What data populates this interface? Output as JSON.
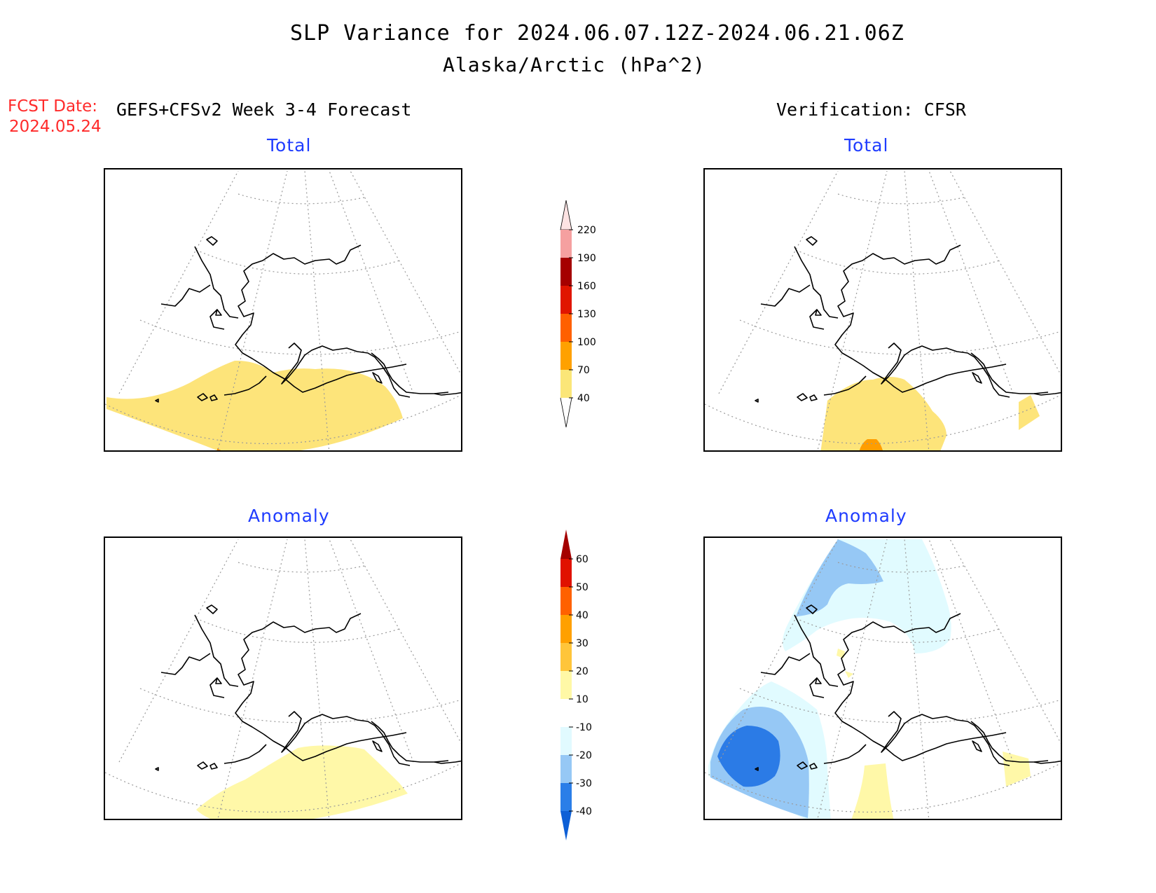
{
  "header": {
    "title": "SLP Variance for 2024.06.07.12Z-2024.06.21.06Z",
    "subtitle": "Alaska/Arctic (hPa^2)"
  },
  "fcst": {
    "label": "FCST Date:",
    "date": "2024.05.24"
  },
  "columns": {
    "left": "GEFS+CFSv2 Week 3-4 Forecast",
    "right": "Verification: CFSR"
  },
  "panels": {
    "fcst_total": "Total",
    "fcst_anomaly": "Anomaly",
    "verif_total": "Total",
    "verif_anomaly": "Anomaly"
  },
  "colorbars": {
    "total": {
      "labels": [
        "40",
        "70",
        "100",
        "130",
        "160",
        "190",
        "220"
      ],
      "colors": [
        "#fbe678",
        "#ffa100",
        "#ff6000",
        "#e01500",
        "#a50000",
        "#f5a0a0",
        "#fde3e3"
      ]
    },
    "anomaly": {
      "labels": [
        "-40",
        "-30",
        "-20",
        "-10",
        "10",
        "20",
        "30",
        "40",
        "50",
        "60"
      ],
      "colors": [
        "#0d5fd6",
        "#2a7ee8",
        "#96c8f5",
        "#e1faff",
        "#ffffff",
        "#fff8a6",
        "#ffc53a",
        "#ffa000",
        "#ff6100",
        "#e01100",
        "#a40000"
      ]
    }
  }
}
